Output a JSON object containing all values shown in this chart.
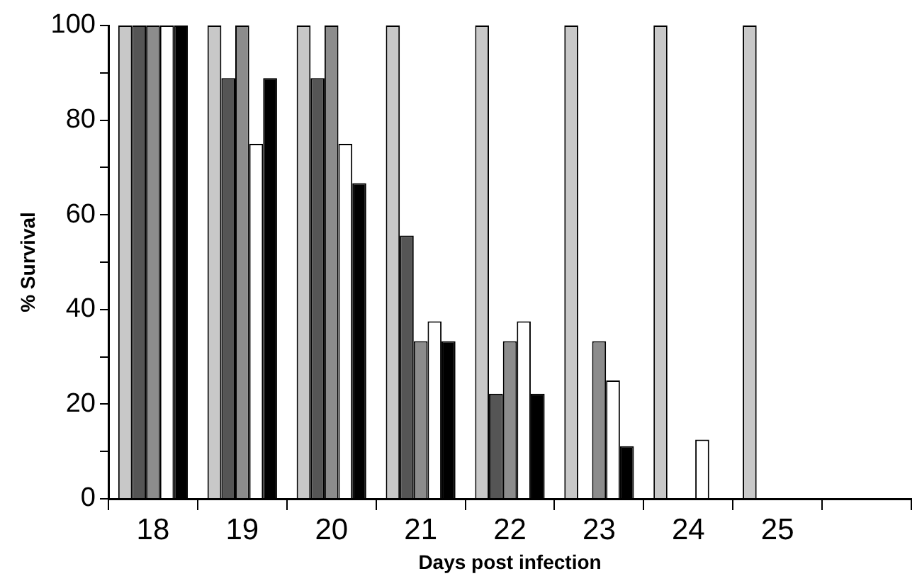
{
  "chart_data": {
    "type": "bar",
    "xlabel": "Days post infection",
    "ylabel": "% Survival",
    "categories": [
      "18",
      "19",
      "20",
      "21",
      "22",
      "23",
      "24",
      "25",
      null
    ],
    "series": [
      {
        "color": "#c8c8c8",
        "values": [
          100,
          100,
          100,
          100,
          100,
          100,
          100,
          100,
          null
        ]
      },
      {
        "color": "#555555",
        "values": [
          100,
          88.9,
          88.9,
          55.6,
          22.2,
          0,
          0,
          0,
          null
        ]
      },
      {
        "color": "#8c8c8c",
        "values": [
          100,
          100,
          100,
          33.3,
          33.3,
          33.3,
          0,
          0,
          null
        ]
      },
      {
        "color": "#ffffff",
        "values": [
          100,
          75,
          75,
          37.5,
          37.5,
          25,
          12.5,
          0,
          null
        ]
      },
      {
        "color": "#000000",
        "values": [
          100,
          88.9,
          66.7,
          33.3,
          22.2,
          11.1,
          0,
          0,
          null
        ]
      }
    ],
    "ylim": [
      0,
      100
    ],
    "yticks": [
      0,
      {
        "value": 10,
        "label": null
      },
      20,
      {
        "value": 30,
        "label": null
      },
      40,
      {
        "value": 50,
        "label": null
      },
      60,
      {
        "value": 70,
        "label": null
      },
      80,
      {
        "value": 90,
        "label": null
      },
      100
    ],
    "grid": false,
    "legend": false
  }
}
